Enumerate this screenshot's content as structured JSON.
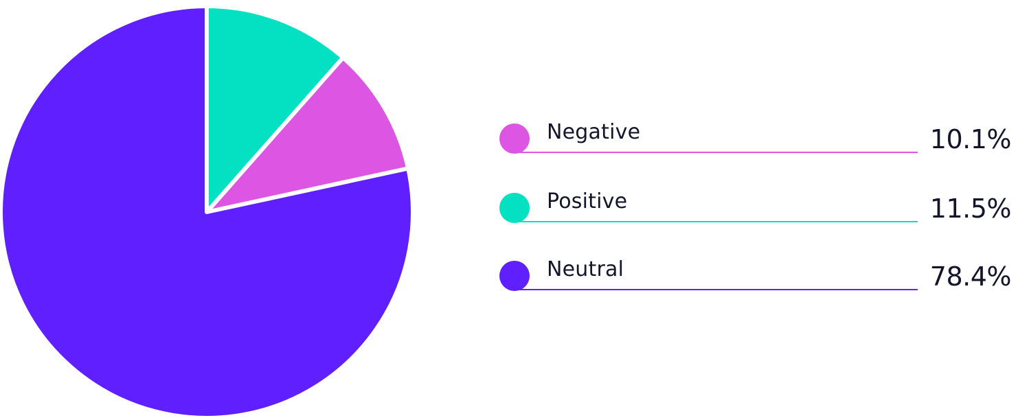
{
  "chart_data": {
    "type": "pie",
    "start_angle_deg": 0,
    "direction": "clockwise",
    "slices": [
      {
        "label": "Positive",
        "value": 11.5,
        "display": "11.5%",
        "color": "#03e1c2"
      },
      {
        "label": "Negative",
        "value": 10.1,
        "display": "10.1%",
        "color": "#dd56e3"
      },
      {
        "label": "Neutral",
        "value": 78.4,
        "display": "78.4%",
        "color": "#5f1ffe"
      }
    ],
    "legend": [
      {
        "label": "Negative",
        "display": "10.1%",
        "color": "#dd56e3"
      },
      {
        "label": "Positive",
        "display": "11.5%",
        "color": "#03e1c2"
      },
      {
        "label": "Neutral",
        "display": "78.4%",
        "color": "#5f1ffe"
      }
    ],
    "slice_border_color": "#ffffff",
    "legend_placement": "right"
  }
}
